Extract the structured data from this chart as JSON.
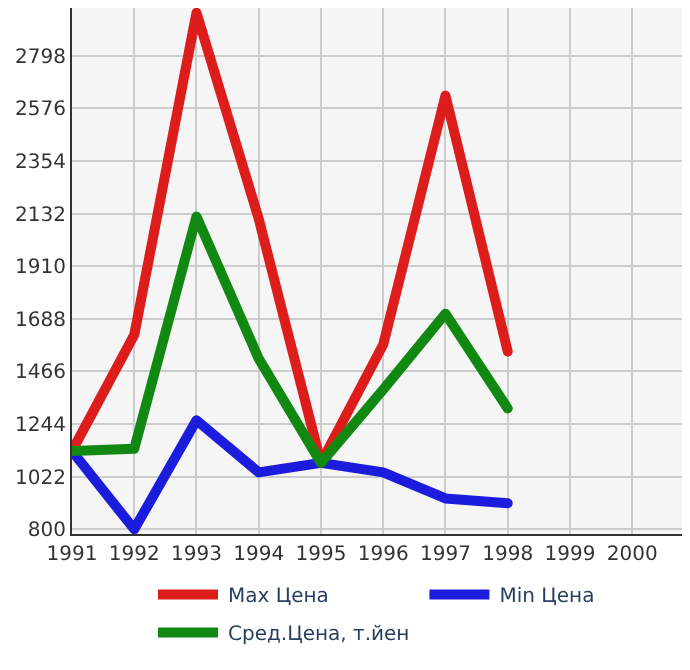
{
  "chart_data": {
    "type": "line",
    "x": [
      1991,
      1992,
      1993,
      1994,
      1995,
      1996,
      1997,
      1998
    ],
    "series": [
      {
        "name": "Max Цена",
        "color": "#dd1c1c",
        "values": [
          1130,
          1620,
          2980,
          2110,
          1080,
          1580,
          2630,
          1550
        ]
      },
      {
        "name": "Min Цена",
        "color": "#1c1cdd",
        "values": [
          1130,
          800,
          1260,
          1040,
          1080,
          1040,
          930,
          910
        ]
      },
      {
        "name": "Сред.Цена, т.йен",
        "color": "#118811",
        "values": [
          1130,
          1140,
          2120,
          1520,
          1080,
          1390,
          1710,
          1310
        ]
      }
    ],
    "xlim": [
      1991,
      2000.8
    ],
    "xticks": [
      1991,
      1992,
      1993,
      1994,
      1995,
      1996,
      1997,
      1998,
      1999,
      2000
    ],
    "ylim": [
      780,
      3000
    ],
    "yticks": [
      800,
      1022,
      1244,
      1466,
      1688,
      1910,
      2132,
      2354,
      2576,
      2798
    ],
    "grid": true,
    "legend": "bottom",
    "marker": "none",
    "line_style": "solid"
  }
}
